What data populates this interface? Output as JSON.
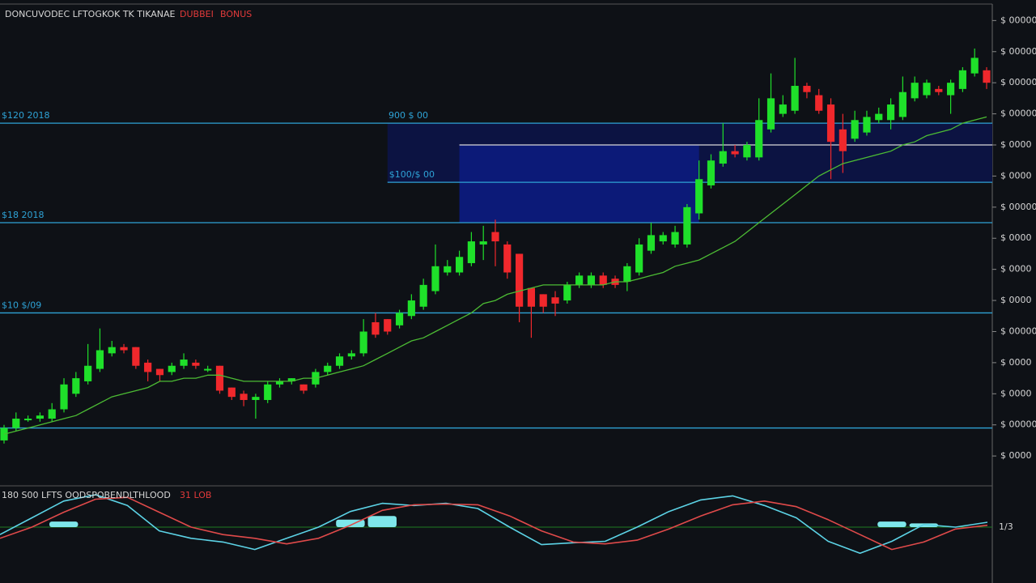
{
  "chart_data": [
    {
      "type": "candlestick",
      "title": "DONCUVODEC LFTOGKOK TK TIKANAE",
      "title_tags": [
        "DUBBEI",
        "BONUS"
      ],
      "up_color": "#1fe02a",
      "down_color": "#f0282c",
      "open": [
        5,
        9,
        12,
        12,
        12,
        15,
        20,
        24,
        28,
        33,
        35,
        35,
        30,
        28,
        27,
        29,
        30,
        28,
        29,
        22,
        20,
        18,
        18,
        23,
        24,
        23,
        23,
        27,
        29,
        32,
        33,
        43,
        44,
        42,
        45,
        48,
        53,
        59,
        59,
        62,
        68,
        72,
        68,
        65,
        54,
        52,
        51,
        50,
        55,
        55,
        58,
        57,
        56,
        59,
        66,
        69,
        68,
        68,
        78,
        87,
        94,
        98,
        96,
        96,
        105,
        110,
        111,
        119,
        116,
        113,
        105,
        102,
        104,
        108,
        108,
        109,
        115,
        116,
        118,
        116,
        118,
        123,
        124
      ],
      "close": [
        9,
        12,
        12,
        13,
        15,
        23,
        25,
        29,
        34,
        35,
        34,
        29,
        27,
        26,
        29,
        31,
        29,
        28,
        21,
        19,
        18,
        19,
        23,
        24,
        25,
        21,
        27,
        29,
        32,
        33,
        40,
        39,
        40,
        46,
        50,
        55,
        61,
        61,
        64,
        69,
        69,
        69,
        59,
        48,
        48,
        48,
        49,
        55,
        58,
        58,
        55,
        55,
        61,
        68,
        71,
        71,
        72,
        80,
        89,
        95,
        98,
        97,
        100,
        108,
        115,
        113,
        119,
        117,
        111,
        101,
        98,
        108,
        109,
        110,
        113,
        117,
        120,
        120,
        117,
        120,
        124,
        128,
        120
      ],
      "high": [
        10,
        14,
        13,
        14,
        17,
        25,
        27,
        36,
        41,
        37,
        36,
        35,
        31,
        28,
        30,
        33,
        31,
        29,
        29,
        22,
        21,
        20,
        24,
        25,
        25,
        23,
        28,
        30,
        33,
        34,
        44,
        46,
        44,
        47,
        52,
        57,
        68,
        63,
        66,
        72,
        74,
        76,
        69,
        65,
        54,
        52,
        53,
        56,
        59,
        59,
        59,
        58,
        62,
        70,
        75,
        72,
        74,
        81,
        95,
        97,
        107,
        100,
        101,
        115,
        123,
        116,
        128,
        120,
        118,
        115,
        110,
        111,
        111,
        112,
        115,
        122,
        122,
        121,
        119,
        121,
        125,
        131,
        125
      ],
      "low": [
        4,
        8,
        11,
        11,
        11,
        14,
        19,
        23,
        27,
        32,
        33,
        28,
        24,
        24,
        26,
        28,
        28,
        27,
        20,
        18,
        16,
        12,
        17,
        22,
        23,
        20,
        22,
        26,
        28,
        31,
        32,
        38,
        39,
        41,
        44,
        47,
        52,
        58,
        58,
        61,
        63,
        61,
        57,
        43,
        38,
        46,
        45,
        49,
        54,
        54,
        54,
        54,
        53,
        58,
        65,
        68,
        67,
        67,
        76,
        86,
        93,
        96,
        95,
        95,
        104,
        109,
        110,
        115,
        110,
        89,
        91,
        101,
        103,
        107,
        105,
        108,
        114,
        115,
        116,
        110,
        117,
        122,
        118
      ],
      "ma": {
        "color": "#4cbc34",
        "values": [
          7,
          8,
          9,
          10,
          11,
          12,
          13,
          15,
          17,
          19,
          20,
          21,
          22,
          24,
          24,
          25,
          25,
          26,
          26,
          25,
          24,
          24,
          24,
          24,
          24,
          25,
          25,
          26,
          27,
          28,
          29,
          31,
          33,
          35,
          37,
          38,
          40,
          42,
          44,
          46,
          49,
          50,
          52,
          53,
          54,
          55,
          55,
          55,
          55,
          55,
          55,
          56,
          56,
          57,
          58,
          59,
          61,
          62,
          63,
          65,
          67,
          69,
          72,
          75,
          78,
          81,
          84,
          87,
          90,
          92,
          94,
          95,
          96,
          97,
          98,
          100,
          101,
          103,
          104,
          105,
          107,
          108,
          109
        ]
      },
      "levels": [
        {
          "value": 107,
          "label": "$120 2018",
          "tag": "900 $ 00",
          "color": "#2ea3d6"
        },
        {
          "value": 100,
          "from": 38,
          "color": "#d8d8d8"
        },
        {
          "value": 88,
          "from": 32,
          "label": "$100/$ 00",
          "color": "#2ea3d6"
        },
        {
          "value": 75,
          "label": "$18 2018",
          "color": "#2ea3d6"
        },
        {
          "value": 46,
          "label": "$10 $/09",
          "color": "#2ea3d6"
        },
        {
          "value": 9,
          "color": "#2ea3d6"
        }
      ],
      "zones": [
        {
          "range": [
            88,
            107
          ],
          "from": 32,
          "color": "#0c1342"
        },
        {
          "range": [
            75,
            100
          ],
          "from": 38,
          "to": 58,
          "color": "#0c1a78"
        }
      ],
      "ylim": [
        -9.6,
        145.3
      ],
      "yticks": [
        {
          "value": 0,
          "label": "$ 0000"
        },
        {
          "value": 10,
          "label": "$ 00000"
        },
        {
          "value": 20,
          "label": "$ 0000"
        },
        {
          "value": 30,
          "label": "$ 0000"
        },
        {
          "value": 40,
          "label": "$ 00000"
        },
        {
          "value": 50,
          "label": "$ 0000"
        },
        {
          "value": 60,
          "label": "$ 0000"
        },
        {
          "value": 70,
          "label": "$ 0000"
        },
        {
          "value": 80,
          "label": "$ 00000"
        },
        {
          "value": 90,
          "label": "$ 0000"
        },
        {
          "value": 100,
          "label": "$ 0000"
        },
        {
          "value": 110,
          "label": "$ 00000"
        },
        {
          "value": 120,
          "label": "$ 00000"
        },
        {
          "value": 130,
          "label": "$ 00000"
        },
        {
          "value": 140,
          "label": "$ 00000"
        }
      ]
    },
    {
      "type": "oscillator",
      "title": "180  S00 LFTS OODSPOBENDLTHLOOD",
      "title_tag": "31 LOB",
      "series": [
        {
          "color": "#5cd3e6",
          "values": [
            -0.2,
            0.25,
            0.7,
            0.87,
            0.58,
            -0.1,
            -0.3,
            -0.4,
            -0.6,
            -0.3,
            0,
            0.42,
            0.64,
            0.58,
            0.64,
            0.5,
            0,
            -0.47,
            -0.42,
            -0.38,
            0,
            0.42,
            0.73,
            0.84,
            0.58,
            0.25,
            -0.38,
            -0.7,
            -0.38,
            0.07,
            0,
            0.13
          ]
        },
        {
          "color": "#e04a4a",
          "values": [
            -0.3,
            0,
            0.4,
            0.75,
            0.8,
            0.4,
            0,
            -0.2,
            -0.3,
            -0.45,
            -0.3,
            0.05,
            0.45,
            0.6,
            0.62,
            0.6,
            0.3,
            -0.1,
            -0.4,
            -0.45,
            -0.35,
            -0.05,
            0.3,
            0.6,
            0.7,
            0.55,
            0.2,
            -0.2,
            -0.6,
            -0.4,
            -0.05,
            0.05
          ]
        }
      ],
      "histogram": {
        "color": "#7ee6ea",
        "values": [
          0,
          0,
          0.15,
          0,
          0,
          0,
          0,
          0,
          0,
          0,
          0,
          0.2,
          0.3,
          0,
          0,
          0,
          0,
          0,
          0,
          0,
          0,
          0,
          0,
          0,
          0,
          0,
          0,
          0,
          0.15,
          0.1,
          0,
          0
        ]
      },
      "zero_color": "#1d7a22",
      "ylim": [
        -1,
        1
      ],
      "yticks": [
        {
          "value": 0,
          "label": "1/3"
        }
      ]
    }
  ]
}
